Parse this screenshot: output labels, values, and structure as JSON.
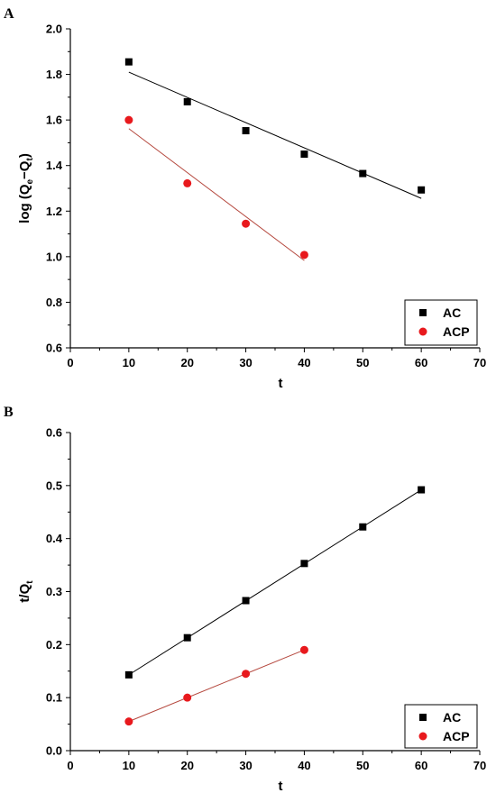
{
  "chart_data": [
    {
      "panel": "A",
      "type": "scatter",
      "xlabel": "t",
      "ylabel_parts": [
        "log (Q",
        "e",
        "−Q",
        "t",
        ")"
      ],
      "xlim": [
        0,
        70
      ],
      "ylim": [
        0.6,
        2.0
      ],
      "xticks": [
        "0",
        "10",
        "20",
        "30",
        "40",
        "50",
        "60",
        "70"
      ],
      "yticks": [
        "0.6",
        "0.8",
        "1.0",
        "1.2",
        "1.4",
        "1.6",
        "1.8",
        "2.0"
      ],
      "legend_position": "bottom-right",
      "series": [
        {
          "name": "AC",
          "marker": "square",
          "color": "#000000",
          "line_color": "#000000",
          "x": [
            10,
            20,
            30,
            40,
            50,
            60
          ],
          "y": [
            1.855,
            1.68,
            1.553,
            1.45,
            1.365,
            1.293
          ],
          "fit": [
            [
              10,
              1.81
            ],
            [
              60,
              1.256
            ]
          ]
        },
        {
          "name": "ACP",
          "marker": "circle",
          "color": "#e8191d",
          "line_color": "#b5483e",
          "x": [
            10,
            20,
            30,
            40
          ],
          "y": [
            1.6,
            1.322,
            1.145,
            1.008
          ],
          "fit": [
            [
              10,
              1.562
            ],
            [
              40,
              0.983
            ]
          ]
        }
      ]
    },
    {
      "panel": "B",
      "type": "scatter",
      "xlabel": "t",
      "ylabel_parts": [
        "t/Q",
        "t"
      ],
      "xlim": [
        0,
        70
      ],
      "ylim": [
        0.0,
        0.6
      ],
      "xticks": [
        "0",
        "10",
        "20",
        "30",
        "40",
        "50",
        "60",
        "70"
      ],
      "yticks": [
        "0.0",
        "0.1",
        "0.2",
        "0.3",
        "0.4",
        "0.5",
        "0.6"
      ],
      "legend_position": "bottom-right",
      "series": [
        {
          "name": "AC",
          "marker": "square",
          "color": "#000000",
          "line_color": "#000000",
          "x": [
            10,
            20,
            30,
            40,
            50,
            60
          ],
          "y": [
            0.143,
            0.213,
            0.283,
            0.353,
            0.422,
            0.492
          ],
          "fit": [
            [
              10,
              0.143
            ],
            [
              60,
              0.492
            ]
          ]
        },
        {
          "name": "ACP",
          "marker": "circle",
          "color": "#e8191d",
          "line_color": "#b5483e",
          "x": [
            10,
            20,
            30,
            40
          ],
          "y": [
            0.055,
            0.1,
            0.145,
            0.19
          ],
          "fit": [
            [
              10,
              0.055
            ],
            [
              40,
              0.19
            ]
          ]
        }
      ]
    }
  ]
}
